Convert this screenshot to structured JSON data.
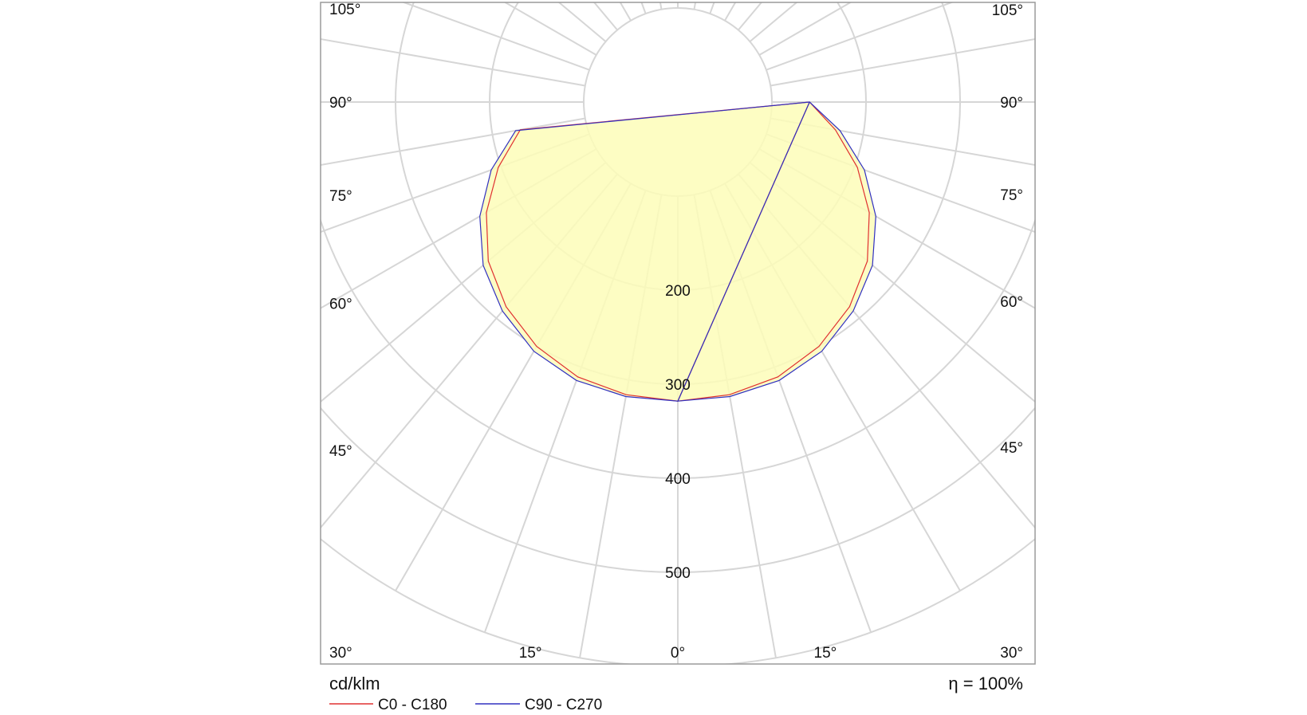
{
  "chart_data": {
    "type": "polar",
    "unit_label": "cd/klm",
    "efficiency_label": "η = 100%",
    "radial_ticks": [
      "200",
      "300",
      "400",
      "500"
    ],
    "radial_values": [
      200,
      300,
      400,
      500
    ],
    "radial_max": 600,
    "angle_labels_left": [
      "105°",
      "90°",
      "75°",
      "60°",
      "45°",
      "30°",
      "15°"
    ],
    "angle_labels_right": [
      "105°",
      "90°",
      "75°",
      "60°",
      "45°",
      "30°",
      "15°"
    ],
    "angle_label_bottom": "0°",
    "grid": true,
    "fill_color": "#fdfdb8",
    "series": [
      {
        "name": "C0 - C180",
        "color": "#e03030",
        "angles": [
          0,
          10,
          20,
          30,
          40,
          50,
          60,
          70,
          80,
          90
        ],
        "values": [
          318,
          316,
          311,
          300,
          284,
          263,
          235,
          203,
          170,
          140
        ]
      },
      {
        "name": "C90 - C270",
        "color": "#3030c0",
        "angles": [
          0,
          10,
          20,
          30,
          40,
          50,
          60,
          70,
          80,
          90
        ],
        "values": [
          318,
          318,
          315,
          306,
          290,
          270,
          243,
          211,
          175,
          140
        ]
      }
    ]
  }
}
